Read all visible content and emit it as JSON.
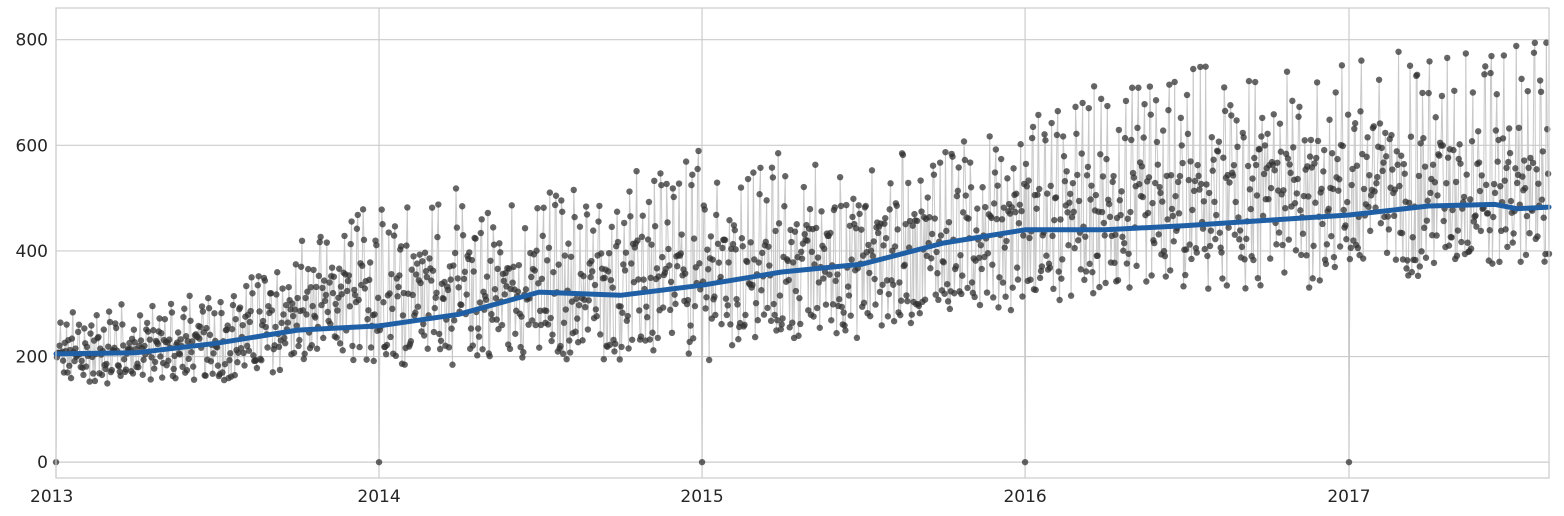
{
  "chart_data": {
    "type": "line",
    "title": "",
    "xlabel": "",
    "ylabel": "",
    "x_range": [
      "2013-01-01",
      "2017-08-15"
    ],
    "ylim": [
      -30,
      860
    ],
    "x_ticks": [
      {
        "date": "2013-01-01",
        "label": "2013"
      },
      {
        "date": "2014-01-01",
        "label": "2014"
      },
      {
        "date": "2015-01-01",
        "label": "2015"
      },
      {
        "date": "2016-01-01",
        "label": "2016"
      },
      {
        "date": "2017-01-01",
        "label": "2017"
      }
    ],
    "y_ticks": [
      {
        "value": 0,
        "label": "0"
      },
      {
        "value": 200,
        "label": "200"
      },
      {
        "value": 400,
        "label": "400"
      },
      {
        "value": 600,
        "label": "600"
      },
      {
        "value": 800,
        "label": "800"
      }
    ],
    "grid": true,
    "series": [
      {
        "kind": "daily-observations",
        "style": "scatter with vertical stems",
        "color": "#333333",
        "approximate_envelope": [
          {
            "date": "2013-01-01",
            "low": 140,
            "high": 290
          },
          {
            "date": "2013-07-01",
            "low": 150,
            "high": 330
          },
          {
            "date": "2014-01-01",
            "low": 180,
            "high": 530
          },
          {
            "date": "2014-07-01",
            "low": 180,
            "high": 520
          },
          {
            "date": "2015-01-01",
            "low": 190,
            "high": 600
          },
          {
            "date": "2015-07-01",
            "low": 230,
            "high": 590
          },
          {
            "date": "2016-01-01",
            "low": 290,
            "high": 690
          },
          {
            "date": "2016-07-01",
            "low": 300,
            "high": 760
          },
          {
            "date": "2017-01-01",
            "low": 330,
            "high": 790
          },
          {
            "date": "2017-08-15",
            "low": 350,
            "high": 820
          }
        ],
        "outliers": [
          {
            "date": "2013-01-01",
            "value": 0
          },
          {
            "date": "2014-01-01",
            "value": 0
          },
          {
            "date": "2015-01-01",
            "value": 0
          },
          {
            "date": "2016-01-01",
            "value": 0
          },
          {
            "date": "2017-01-01",
            "value": 0
          }
        ]
      },
      {
        "kind": "trend",
        "style": "thick line",
        "color": "#1f5fa6",
        "points": [
          {
            "date": "2013-01-01",
            "value": 205
          },
          {
            "date": "2013-04-01",
            "value": 207
          },
          {
            "date": "2013-07-01",
            "value": 225
          },
          {
            "date": "2013-10-01",
            "value": 250
          },
          {
            "date": "2014-01-01",
            "value": 258
          },
          {
            "date": "2014-04-01",
            "value": 280
          },
          {
            "date": "2014-07-01",
            "value": 322
          },
          {
            "date": "2014-10-01",
            "value": 316
          },
          {
            "date": "2015-01-01",
            "value": 335
          },
          {
            "date": "2015-04-01",
            "value": 360
          },
          {
            "date": "2015-07-01",
            "value": 375
          },
          {
            "date": "2015-10-01",
            "value": 415
          },
          {
            "date": "2016-01-01",
            "value": 440
          },
          {
            "date": "2016-04-01",
            "value": 440
          },
          {
            "date": "2016-07-01",
            "value": 448
          },
          {
            "date": "2016-10-01",
            "value": 458
          },
          {
            "date": "2017-01-01",
            "value": 468
          },
          {
            "date": "2017-04-01",
            "value": 485
          },
          {
            "date": "2017-06-15",
            "value": 488
          },
          {
            "date": "2017-07-10",
            "value": 480
          },
          {
            "date": "2017-08-15",
            "value": 483
          }
        ]
      }
    ]
  }
}
